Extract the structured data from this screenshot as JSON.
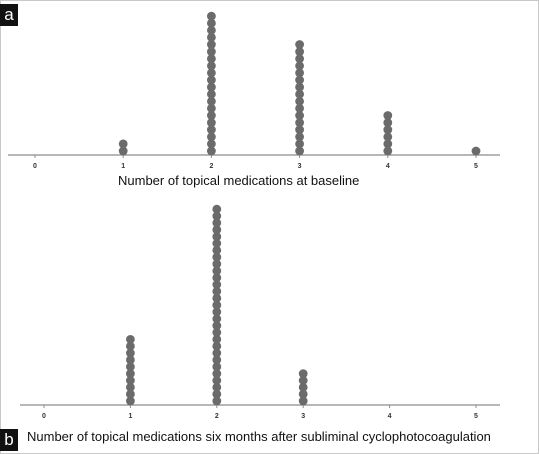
{
  "chart_data": [
    {
      "type": "scatter",
      "panel_label": "a",
      "title": "",
      "xlabel": "Number of topical medications at baseline",
      "ylabel": "",
      "x_ticks": [
        "0",
        "1",
        "2",
        "3",
        "4",
        "5"
      ],
      "categories": [
        0,
        1,
        2,
        3,
        4,
        5
      ],
      "counts": [
        0,
        2,
        20,
        16,
        6,
        1
      ],
      "xlim": [
        0,
        5
      ],
      "grid": false,
      "legend": "none",
      "marker_color": "#6b6b6b"
    },
    {
      "type": "scatter",
      "panel_label": "b",
      "title": "",
      "xlabel": "Number of topical medications six months after subliminal cyclophotocoagulation",
      "ylabel": "",
      "x_ticks": [
        "0",
        "1",
        "2",
        "3",
        "4",
        "5"
      ],
      "categories": [
        0,
        1,
        2,
        3,
        4,
        5
      ],
      "counts": [
        0,
        10,
        29,
        5,
        0,
        0
      ],
      "xlim": [
        0,
        5
      ],
      "grid": false,
      "legend": "none",
      "marker_color": "#6b6b6b"
    }
  ]
}
